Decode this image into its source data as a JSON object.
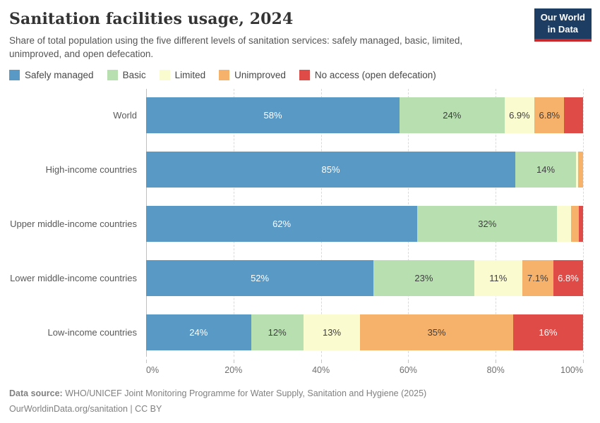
{
  "header": {
    "title": "Sanitation facilities usage, 2024",
    "subtitle": "Share of total population using the five different levels of sanitation services: safely managed, basic, limited, unimproved, and open defecation.",
    "logo": {
      "line1": "Our World",
      "line2": "in Data",
      "bg": "#1D3D63",
      "accent": "#C9282D"
    }
  },
  "legend": [
    {
      "label": "Safely managed",
      "color": "#5899C5"
    },
    {
      "label": "Basic",
      "color": "#B7DFB0"
    },
    {
      "label": "Limited",
      "color": "#FBFBD0"
    },
    {
      "label": "Unimproved",
      "color": "#F6B16B"
    },
    {
      "label": "No access (open defecation)",
      "color": "#DF4B46"
    }
  ],
  "chart_data": {
    "type": "bar",
    "orientation": "horizontal",
    "stacked": true,
    "grid": true,
    "legend_position": "top",
    "xlabel": "",
    "ylabel": "",
    "xlim": [
      0,
      100
    ],
    "categories": [
      "World",
      "High-income countries",
      "Upper middle-income countries",
      "Lower middle-income countries",
      "Low-income countries"
    ],
    "series": [
      {
        "name": "Safely managed",
        "color": "#5899C5",
        "label_color": "#FFFFFF",
        "values": [
          58,
          85,
          62,
          52,
          24
        ],
        "labels": [
          "58%",
          "85%",
          "62%",
          "52%",
          "24%"
        ]
      },
      {
        "name": "Basic",
        "color": "#B7DFB0",
        "label_color": "#3E3E3E",
        "values": [
          24,
          14,
          32,
          23,
          12
        ],
        "labels": [
          "24%",
          "14%",
          "32%",
          "23%",
          "12%"
        ]
      },
      {
        "name": "Limited",
        "color": "#FBFBD0",
        "label_color": "#3E3E3E",
        "values": [
          6.9,
          0.4,
          3.1,
          11,
          13
        ],
        "labels": [
          "6.9%",
          "",
          "",
          "11%",
          "13%"
        ]
      },
      {
        "name": "Unimproved",
        "color": "#F6B16B",
        "label_color": "#3E3E3E",
        "values": [
          6.8,
          1.2,
          1.8,
          7.1,
          35
        ],
        "labels": [
          "6.8%",
          "",
          "",
          "7.1%",
          "35%"
        ]
      },
      {
        "name": "No access (open defecation)",
        "color": "#DF4B46",
        "label_color": "#FFFFFF",
        "values": [
          4.3,
          0,
          1.0,
          6.8,
          16
        ],
        "labels": [
          "",
          "",
          "",
          "6.8%",
          "16%"
        ]
      }
    ],
    "xticks": [
      {
        "pos": 0,
        "label": "0%"
      },
      {
        "pos": 20,
        "label": "20%"
      },
      {
        "pos": 40,
        "label": "40%"
      },
      {
        "pos": 60,
        "label": "60%"
      },
      {
        "pos": 80,
        "label": "80%"
      },
      {
        "pos": 100,
        "label": "100%"
      }
    ]
  },
  "footer": {
    "source_prefix": "Data source:",
    "source": " WHO/UNICEF Joint Monitoring Programme for Water Supply, Sanitation and Hygiene (2025)",
    "license": "OurWorldinData.org/sanitation | CC BY"
  }
}
